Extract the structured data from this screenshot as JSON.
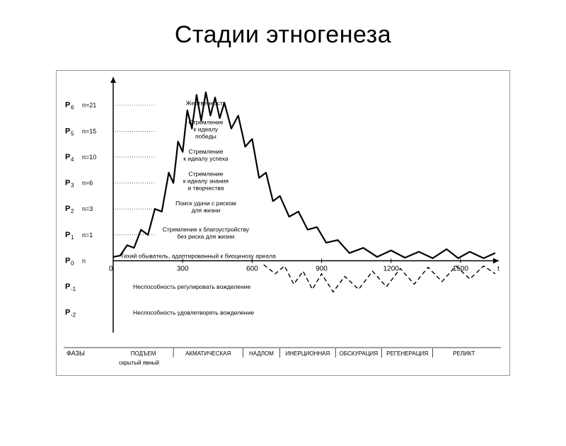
{
  "title": "Стадии этногенеза",
  "chart": {
    "type": "line",
    "background_color": "#ffffff",
    "line_color": "#000000",
    "line_width": 2.2,
    "dashed_line_width": 1.4,
    "dash_pattern": "6,4",
    "xlim": [
      0,
      1650
    ],
    "ylim": [
      -2.5,
      7
    ],
    "xticks": [
      0,
      300,
      600,
      900,
      1200,
      1500
    ],
    "y_levels": [
      {
        "key": "P6",
        "sub": "6",
        "n": "n=21",
        "label": "Жертвенность",
        "val": 6
      },
      {
        "key": "P5",
        "sub": "5",
        "n": "n=15",
        "label": "Стремление\nк идеалу\nпобеды",
        "val": 5
      },
      {
        "key": "P4",
        "sub": "4",
        "n": "n=10",
        "label": "Стремление\nк идеалу успеха",
        "val": 4
      },
      {
        "key": "P3",
        "sub": "3",
        "n": "n=6",
        "label": "Стремление\nк идеалу знания\nи творчества",
        "val": 3
      },
      {
        "key": "P2",
        "sub": "2",
        "n": "n=3",
        "label": "Поиск удачи с риском\nдля жизни",
        "val": 2
      },
      {
        "key": "P1",
        "sub": "1",
        "n": "n=1",
        "label": "Стремление к благоустройству\nбез риска для жизни",
        "val": 1
      },
      {
        "key": "P0",
        "sub": "0",
        "n": "n",
        "label": "Тихий обыватель, адаптированный к биоценозу ареала",
        "val": 0
      },
      {
        "key": "P-1",
        "sub": "-1",
        "n": "",
        "label": "Неспособность регулировать вожделение",
        "val": -1
      },
      {
        "key": "P-2",
        "sub": "-2",
        "n": "",
        "label": "Неспособность удовлетворять вожделение",
        "val": -2
      }
    ],
    "axis_t_label": "t",
    "phases_header": "ФАЗЫ",
    "phases_sub": "скрытый явный",
    "phases": [
      "ПОДЪЕМ",
      "АКМАТИЧЕСКАЯ",
      "НАДЛОМ",
      "ИНЕРЦИОННАЯ",
      "ОБСКУРАЦИЯ",
      "РЕГЕНЕРАЦИЯ",
      "РЕЛИКТ"
    ],
    "curve_solid": [
      [
        0,
        0.15
      ],
      [
        30,
        0.2
      ],
      [
        60,
        0.6
      ],
      [
        90,
        0.5
      ],
      [
        120,
        1.2
      ],
      [
        150,
        1.0
      ],
      [
        180,
        2.0
      ],
      [
        210,
        1.9
      ],
      [
        240,
        3.4
      ],
      [
        260,
        3.0
      ],
      [
        280,
        4.6
      ],
      [
        300,
        4.2
      ],
      [
        320,
        5.8
      ],
      [
        340,
        5.1
      ],
      [
        360,
        6.4
      ],
      [
        380,
        5.4
      ],
      [
        400,
        6.5
      ],
      [
        420,
        5.6
      ],
      [
        440,
        6.3
      ],
      [
        460,
        5.5
      ],
      [
        480,
        6.1
      ],
      [
        510,
        5.1
      ],
      [
        540,
        5.6
      ],
      [
        570,
        4.4
      ],
      [
        600,
        4.7
      ],
      [
        630,
        3.2
      ],
      [
        660,
        3.4
      ],
      [
        690,
        2.3
      ],
      [
        720,
        2.5
      ],
      [
        760,
        1.7
      ],
      [
        800,
        1.9
      ],
      [
        840,
        1.2
      ],
      [
        880,
        1.3
      ],
      [
        920,
        0.7
      ],
      [
        970,
        0.8
      ],
      [
        1020,
        0.3
      ],
      [
        1080,
        0.5
      ],
      [
        1140,
        0.15
      ],
      [
        1200,
        0.4
      ],
      [
        1260,
        0.12
      ],
      [
        1320,
        0.35
      ],
      [
        1380,
        0.1
      ],
      [
        1440,
        0.45
      ],
      [
        1490,
        0.1
      ],
      [
        1540,
        0.35
      ],
      [
        1600,
        0.1
      ],
      [
        1650,
        0.3
      ]
    ],
    "curve_dashed": [
      [
        650,
        -0.15
      ],
      [
        700,
        -0.5
      ],
      [
        740,
        -0.2
      ],
      [
        780,
        -0.9
      ],
      [
        820,
        -0.4
      ],
      [
        860,
        -1.1
      ],
      [
        900,
        -0.5
      ],
      [
        950,
        -1.2
      ],
      [
        1000,
        -0.6
      ],
      [
        1060,
        -1.1
      ],
      [
        1120,
        -0.4
      ],
      [
        1180,
        -1.0
      ],
      [
        1240,
        -0.3
      ],
      [
        1300,
        -0.9
      ],
      [
        1360,
        -0.25
      ],
      [
        1420,
        -0.8
      ],
      [
        1480,
        -0.2
      ],
      [
        1540,
        -0.7
      ],
      [
        1600,
        -0.2
      ],
      [
        1650,
        -0.5
      ]
    ]
  }
}
